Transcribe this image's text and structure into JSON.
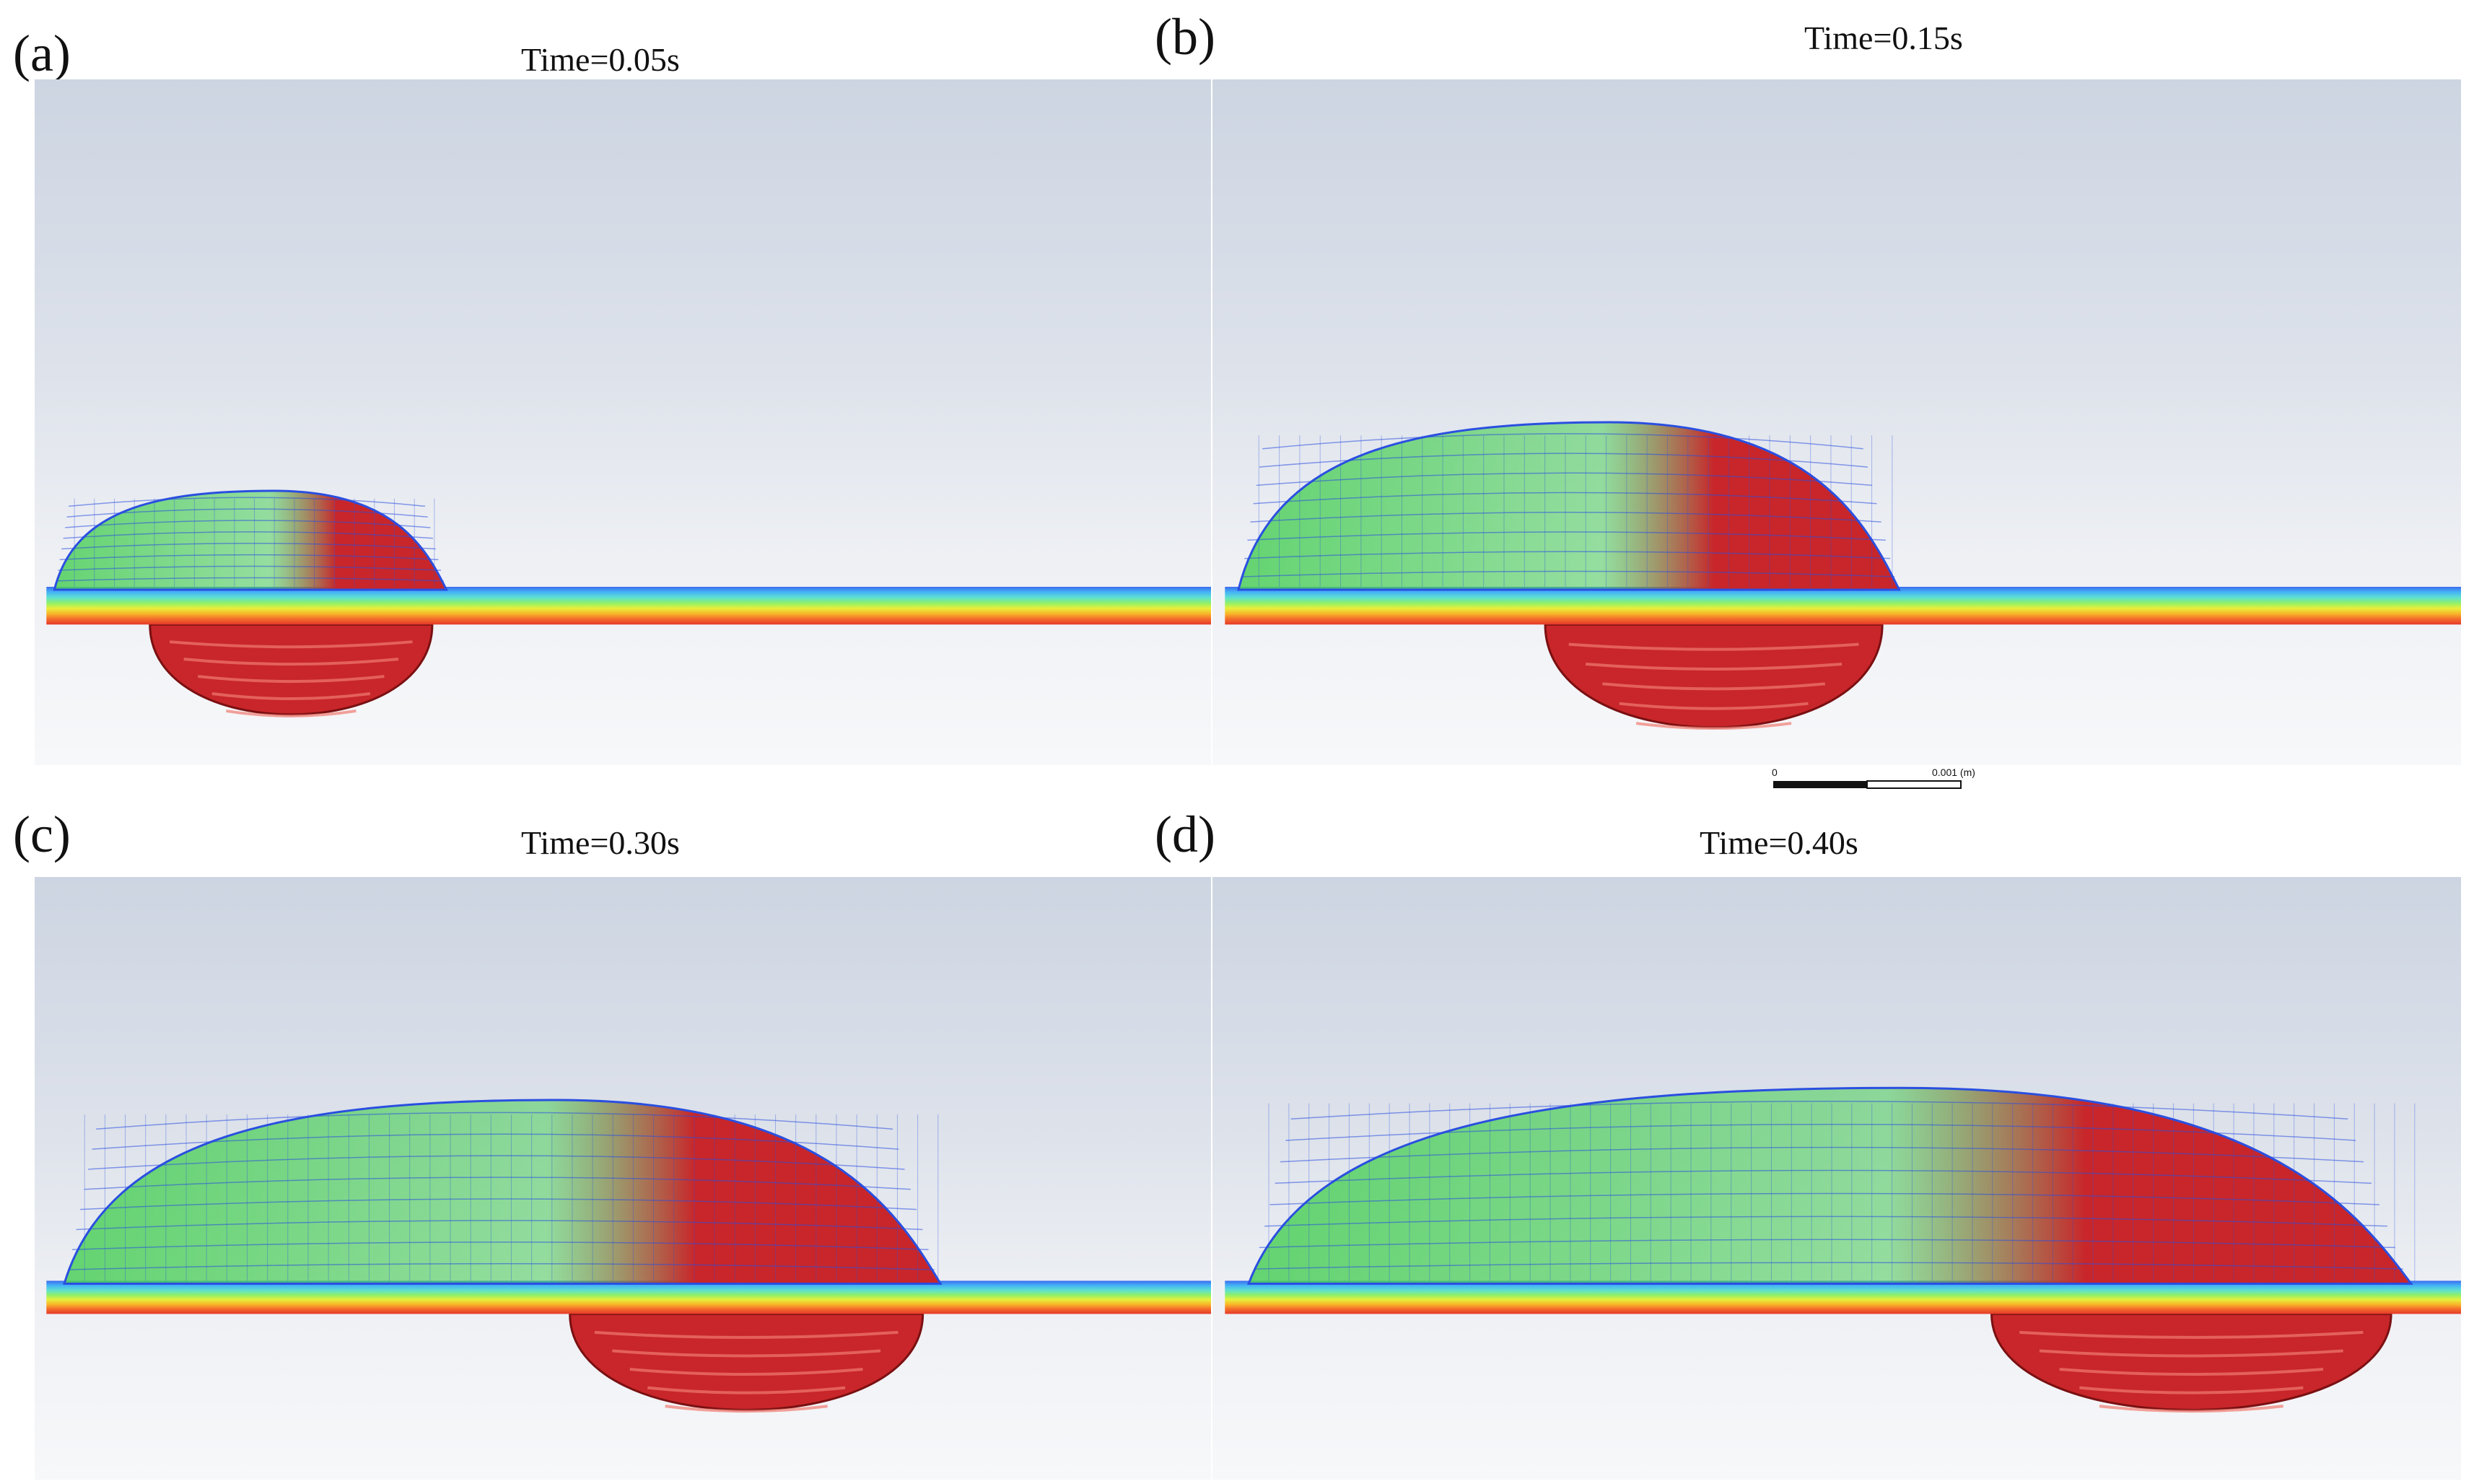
{
  "panels": [
    {
      "letter": "(a)",
      "time": "Time=0.05s",
      "upper_span_frac": 0.34,
      "lower_span_frac": 0.24,
      "upper_height_frac": 0.14,
      "lower_depth_frac": 0.14
    },
    {
      "letter": "(b)",
      "time": "Time=0.15s",
      "upper_span_frac": 0.54,
      "lower_span_frac": 0.27,
      "upper_height_frac": 0.24,
      "lower_depth_frac": 0.16
    },
    {
      "letter": "(c)",
      "time": "Time=0.30s",
      "upper_span_frac": 0.76,
      "lower_span_frac": 0.3,
      "upper_height_frac": 0.3,
      "lower_depth_frac": 0.17
    },
    {
      "letter": "(d)",
      "time": "Time=0.40s",
      "upper_span_frac": 0.95,
      "lower_span_frac": 0.32,
      "upper_height_frac": 0.32,
      "lower_depth_frac": 0.17
    }
  ],
  "scale": {
    "start": "0",
    "end": "0.001 (m)"
  },
  "colors": {
    "sky_top": "#cdd5e2",
    "sky_bottom": "#f7f8fa",
    "melt_red": "#c8262a",
    "mesh_blue": "#2a4fe0",
    "mesh_green": "#4ccf5a",
    "track_colors": [
      "#3b6cf0",
      "#45b4f5",
      "#5fe0d0",
      "#8ef06a",
      "#e8ef3a",
      "#f9b52a",
      "#f36a2a",
      "#e5392a"
    ]
  }
}
